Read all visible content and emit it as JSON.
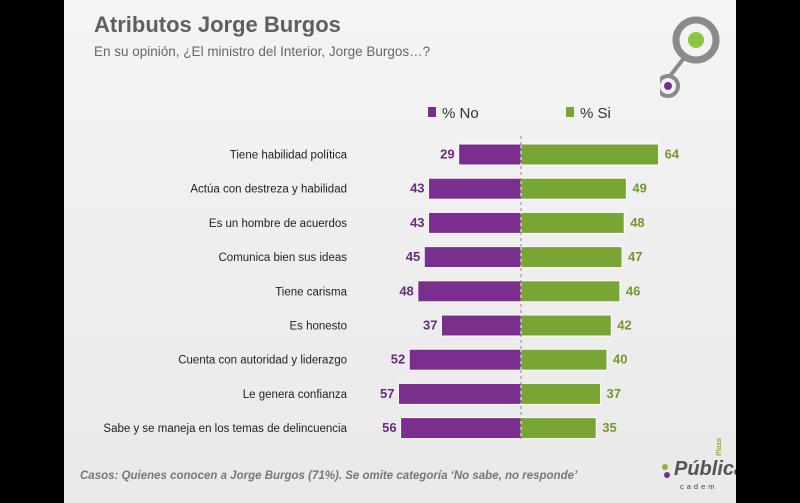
{
  "title": "Atributos Jorge Burgos",
  "subtitle": "En su opinión, ¿El ministro del Interior, Jorge Burgos…?",
  "footnote": "Casos: Quienes conocen a Jorge Burgos (71%). Se omite categoría ‘No sabe, no responde’",
  "logo": {
    "brand": "Pública",
    "tag": "Plaza",
    "sub": "cadem"
  },
  "colors": {
    "no": "#7a2f8f",
    "si": "#78a533",
    "no_text": "#6a2a80",
    "si_text": "#6f9a2d"
  },
  "chart_data": {
    "type": "bar",
    "orientation": "diverging-horizontal",
    "categories": [
      "Tiene habilidad política",
      "Actúa con destreza y habilidad",
      "Es un hombre de acuerdos",
      "Comunica bien sus ideas",
      "Tiene carisma",
      "Es honesto",
      "Cuenta con autoridad y liderazgo",
      "Le genera confianza",
      "Sabe y se maneja en los temas de delincuencia"
    ],
    "series": [
      {
        "name": "% No",
        "values": [
          29,
          43,
          43,
          45,
          48,
          37,
          52,
          57,
          56
        ]
      },
      {
        "name": "% Si",
        "values": [
          64,
          49,
          48,
          47,
          46,
          42,
          40,
          37,
          35
        ]
      }
    ],
    "legend_position": "top",
    "grid": false
  }
}
